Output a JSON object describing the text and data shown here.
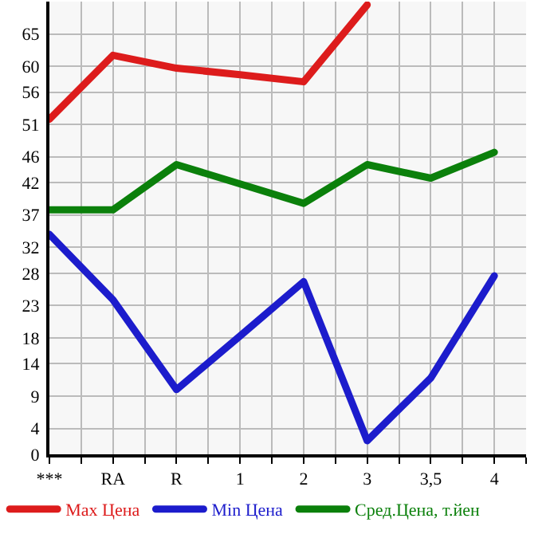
{
  "chart_data": {
    "type": "line",
    "categories": [
      "***",
      "RA",
      "R",
      "1",
      "2",
      "3",
      "3,5",
      "4"
    ],
    "series": [
      {
        "name": "Max Цена",
        "color": "#dd1c1c",
        "values": [
          51.8,
          61.7,
          59.7,
          58.7,
          57.6,
          69.5,
          null,
          null
        ]
      },
      {
        "name": "Min Цена",
        "color": "#1c1ccc",
        "values": [
          34.0,
          23.9,
          10.0,
          18.3,
          26.7,
          2.1,
          11.8,
          27.6
        ]
      },
      {
        "name": "Сред.Цена, т.йен",
        "color": "#0b800b",
        "values": [
          37.8,
          37.8,
          44.8,
          41.8,
          38.8,
          44.8,
          42.7,
          46.7
        ]
      }
    ],
    "ylim": [
      0,
      70
    ],
    "yticks": [
      0,
      4,
      9,
      14,
      18,
      23,
      28,
      32,
      37,
      42,
      46,
      51,
      56,
      60,
      65
    ],
    "grid": true,
    "legend": "bottom",
    "marker": "none",
    "line_style": "solid"
  }
}
